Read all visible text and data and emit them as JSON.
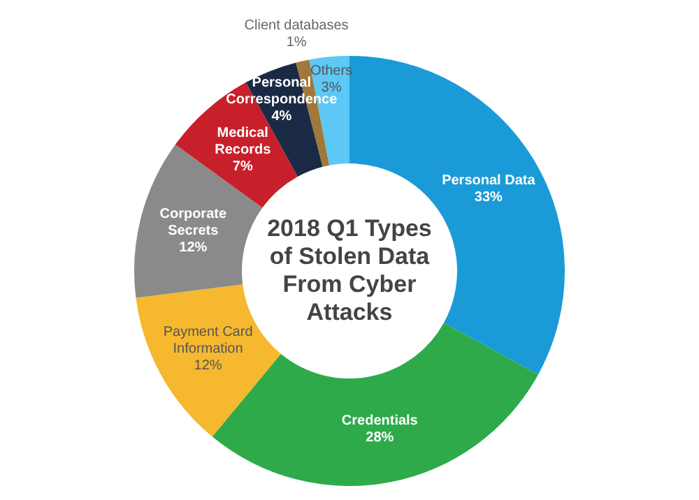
{
  "chart_data": {
    "type": "donut",
    "title": "2018 Q1 Types of Stolen Data From Cyber Attacks",
    "categories": [
      "Personal Data",
      "Credentials",
      "Payment Card Information",
      "Corporate Secrets",
      "Medical Records",
      "Personal Correspondence",
      "Client databases",
      "Others"
    ],
    "values": [
      33,
      28,
      12,
      12,
      7,
      4,
      1,
      3
    ],
    "colors": [
      "#1a9bd7",
      "#2eaa4a",
      "#f5b82e",
      "#8a8a8a",
      "#c8202a",
      "#1b2a44",
      "#a0783a",
      "#5bc8f5"
    ],
    "value_labels": [
      "33%",
      "28%",
      "12%",
      "12%",
      "7%",
      "4%",
      "1%",
      "3%"
    ]
  }
}
